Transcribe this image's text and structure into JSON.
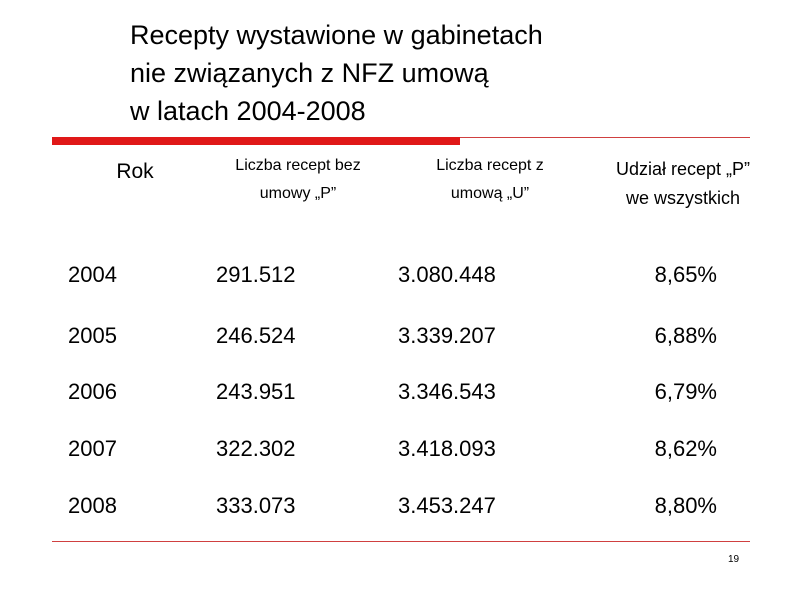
{
  "header": {
    "title_lines": [
      "Recepty wystawione w gabinetach",
      "nie związanych z NFZ umową",
      "w latach 2004-2008"
    ]
  },
  "table": {
    "columns": [
      [
        "Rok"
      ],
      [
        "Liczba recept bez",
        "umowy „P”"
      ],
      [
        "Liczba recept z",
        "umową „U”"
      ],
      [
        "Udział recept „P”",
        "we wszystkich"
      ]
    ],
    "rows": [
      [
        "2004",
        "291.512",
        "3.080.448",
        "8,65%"
      ],
      [
        "2005",
        "246.524",
        "3.339.207",
        "6,88%"
      ],
      [
        "2006",
        "243.951",
        "3.346.543",
        "6,79%"
      ],
      [
        "2007",
        "322.302",
        "3.418.093",
        "8,62%"
      ],
      [
        "2008",
        "333.073",
        "3.453.247",
        "8,80%"
      ]
    ]
  },
  "footer": {
    "page_number": "19"
  }
}
